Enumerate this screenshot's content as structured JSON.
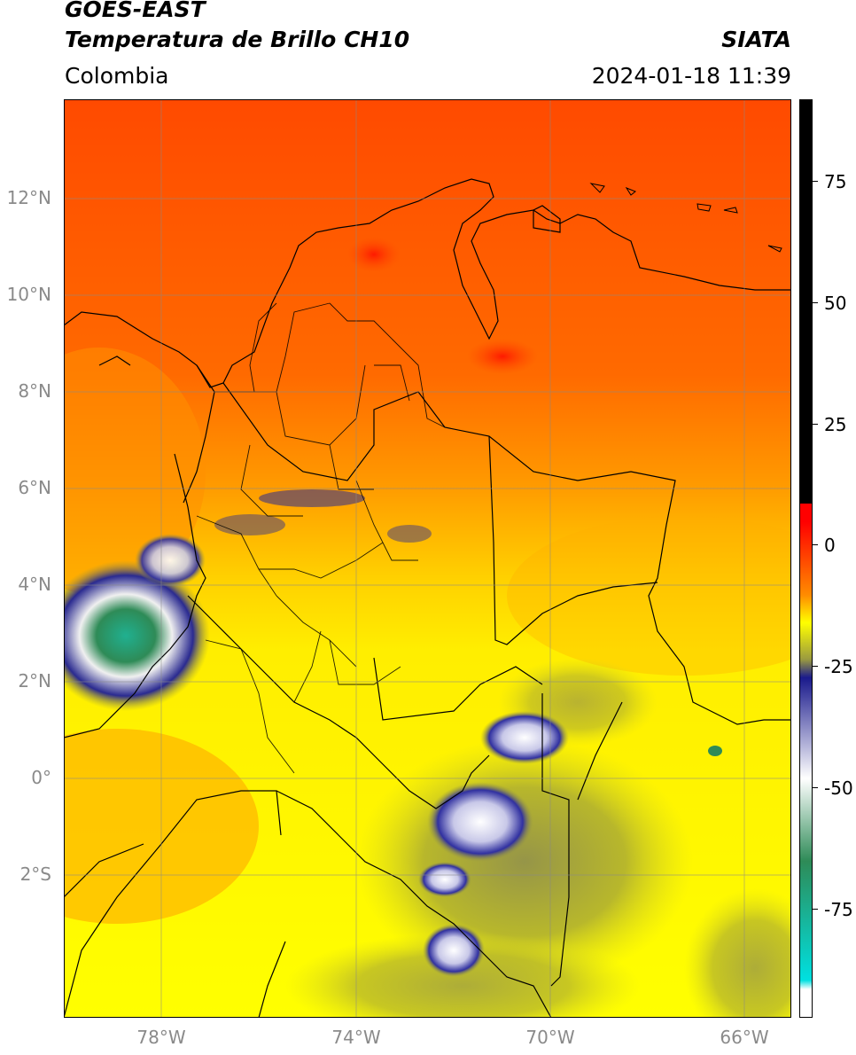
{
  "header": {
    "title_line1": "GOES-EAST",
    "title_line2": "Temperatura de Brillo CH10",
    "region": "Colombia",
    "source": "SIATA",
    "datetime": "2024-01-18 11:39"
  },
  "map": {
    "lat_labels": [
      "12°N",
      "10°N",
      "8°N",
      "6°N",
      "4°N",
      "2°N",
      "0°",
      "2°S"
    ],
    "lon_labels": [
      "78°W",
      "74°W",
      "70°W",
      "66°W"
    ],
    "grid": true,
    "coastline_color": "#000000"
  },
  "colorbar": {
    "ticks": [
      "75",
      "50",
      "25",
      "0",
      "-25",
      "-50",
      "-75"
    ],
    "colors": [
      "#000000",
      "#ff0000",
      "#ff8c00",
      "#ffff00",
      "#9a9a40",
      "#1a1a8c",
      "#ffffff",
      "#2e8b57",
      "#00e0e0",
      "#ffffff"
    ]
  }
}
